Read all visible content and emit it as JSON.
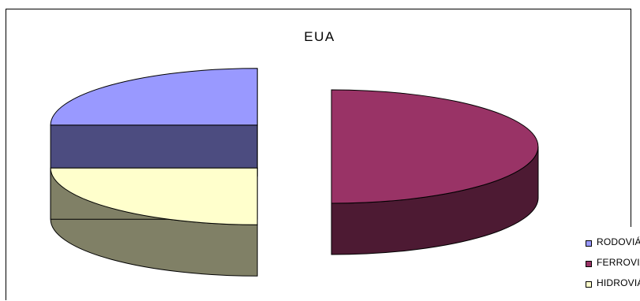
{
  "chart_data": {
    "type": "pie",
    "title": "EUA",
    "style": "3d-exploded",
    "legend_position": "bottom-right",
    "slices": [
      {
        "label": "RODOVIÁRIO",
        "value": 25,
        "color": "#9999FF",
        "side_color": "#4C4C80"
      },
      {
        "label": "FERROVIÁRIO",
        "value": 50,
        "color": "#993366",
        "side_color": "#4D1A33"
      },
      {
        "label": "HIDROVIÁRIO",
        "value": 25,
        "color": "#FFFFCC",
        "side_color": "#808066"
      }
    ]
  }
}
